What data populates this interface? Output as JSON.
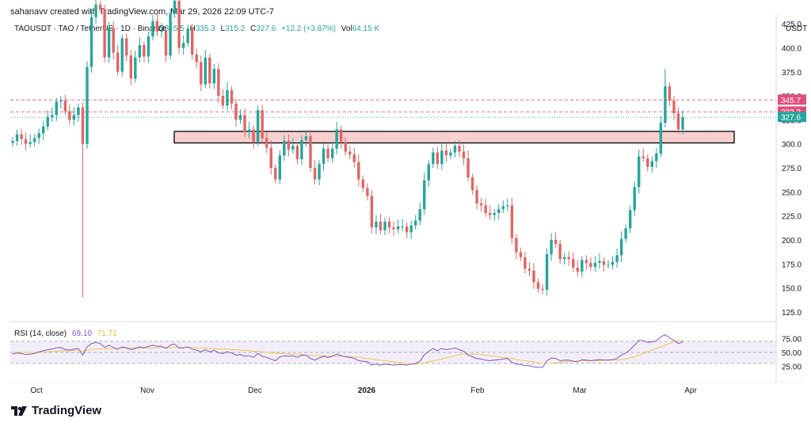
{
  "header": {
    "created_by": "sahanavv created with TradingView.com, Mar 29, 2026 22:09 UTC-7"
  },
  "legend": {
    "symbol": "TAOUSDT · TAO / TetherUS · 1D · Binance",
    "o_label": "O",
    "o": "315.5",
    "h_label": "H",
    "h": "335.3",
    "l_label": "L",
    "l": "315.2",
    "c_label": "C",
    "c": "327.6",
    "change": "+12.2 (+3.87%)",
    "vol_label": "Vol",
    "vol": "64.15 K"
  },
  "price_axis": {
    "currency": "USDT",
    "ticks": [
      "425.0",
      "400.0",
      "375.0",
      "350.0",
      "325.0",
      "300.0",
      "275.0",
      "250.0",
      "225.0",
      "200.0",
      "175.0",
      "150.0",
      "125.0"
    ],
    "tick_values": [
      425,
      400,
      375,
      350,
      325,
      300,
      275,
      250,
      225,
      200,
      175,
      150,
      125
    ],
    "labels": [
      {
        "text": "345.7",
        "value": 345.7,
        "color": "#e0507a"
      },
      {
        "text": "333.3",
        "value": 333.3,
        "color": "#e0507a"
      },
      {
        "text": "327.6",
        "value": 327.6,
        "color": "#26a69a"
      }
    ]
  },
  "rsi": {
    "title": "RSI (14, close)",
    "value": "69.10",
    "ma": "71.71",
    "ticks": [
      "75.00",
      "50.00",
      "25.00"
    ],
    "tick_values": [
      75,
      50,
      25
    ],
    "upper": 70,
    "lower": 30
  },
  "time_axis": {
    "labels": [
      "Oct",
      "Nov",
      "Dec",
      "2026",
      "Feb",
      "Mar",
      "Apr"
    ]
  },
  "footer": {
    "brand": "TradingView"
  },
  "colors": {
    "up": "#26a69a",
    "down": "#e06666",
    "rsi_line": "#7e57c2",
    "rsi_ma": "#f2c84b",
    "zone_fill": "#f8d0d0",
    "zone_stroke": "#000000",
    "dashed": "#e0507a"
  },
  "chart_data": {
    "type": "candlestick",
    "title": "TAOUSDT · TAO / TetherUS · 1D · Binance",
    "x_period": "daily, approx. late Sep 2025 – Mar 29 2026",
    "ylim": [
      115,
      435
    ],
    "horizontal_lines": [
      345.7,
      333.3,
      327.6
    ],
    "support_zone": [
      301,
      313
    ],
    "closes": [
      303,
      310,
      305,
      300,
      302,
      306,
      311,
      318,
      328,
      330,
      344,
      345,
      334,
      325,
      330,
      338,
      300,
      380,
      432,
      445,
      440,
      390,
      421,
      395,
      375,
      410,
      392,
      368,
      390,
      403,
      391,
      412,
      428,
      417,
      418,
      392,
      436,
      449,
      400,
      405,
      420,
      393,
      385,
      362,
      390,
      363,
      378,
      350,
      340,
      356,
      342,
      325,
      330,
      312,
      315,
      302,
      335,
      306,
      296,
      275,
      263,
      288,
      303,
      294,
      298,
      284,
      304,
      308,
      275,
      263,
      279,
      295,
      285,
      295,
      315,
      302,
      292,
      289,
      281,
      263,
      254,
      246,
      213,
      219,
      210,
      219,
      213,
      211,
      214,
      214,
      208,
      215,
      220,
      232,
      262,
      279,
      291,
      279,
      293,
      288,
      291,
      298,
      292,
      285,
      265,
      252,
      238,
      236,
      228,
      226,
      228,
      232,
      235,
      236,
      202,
      187,
      182,
      170,
      168,
      156,
      149,
      148,
      185,
      200,
      196,
      180,
      182,
      180,
      171,
      167,
      179,
      176,
      172,
      176,
      178,
      174,
      174,
      177,
      184,
      201,
      212,
      231,
      255,
      287,
      285,
      276,
      282,
      290,
      322,
      360,
      345,
      332,
      315,
      327.6
    ],
    "rsi": [
      47,
      49,
      48,
      46,
      47,
      48,
      51,
      53,
      55,
      56,
      58,
      59,
      55,
      54,
      56,
      57,
      45,
      60,
      66,
      68,
      66,
      59,
      63,
      59,
      56,
      60,
      58,
      55,
      57,
      60,
      58,
      61,
      63,
      61,
      61,
      57,
      63,
      65,
      58,
      58,
      60,
      56,
      54,
      51,
      55,
      51,
      54,
      49,
      48,
      51,
      49,
      45,
      46,
      43,
      44,
      41,
      48,
      43,
      41,
      38,
      35,
      42,
      44,
      43,
      44,
      41,
      45,
      45,
      39,
      36,
      40,
      43,
      41,
      43,
      47,
      44,
      42,
      41,
      39,
      35,
      34,
      33,
      27,
      29,
      27,
      29,
      28,
      27,
      28,
      28,
      27,
      29,
      30,
      34,
      46,
      52,
      57,
      53,
      57,
      55,
      56,
      58,
      55,
      52,
      45,
      42,
      39,
      38,
      36,
      35,
      36,
      37,
      38,
      39,
      32,
      29,
      28,
      26,
      26,
      24,
      23,
      23,
      35,
      40,
      39,
      35,
      36,
      36,
      34,
      33,
      37,
      36,
      35,
      36,
      37,
      36,
      36,
      37,
      39,
      45,
      49,
      55,
      63,
      72,
      71,
      68,
      69,
      71,
      78,
      82,
      76,
      72,
      66,
      69
    ],
    "rsi_ma": [
      50,
      50,
      50,
      50,
      50,
      50,
      50,
      51,
      51,
      52,
      52,
      53,
      53,
      53,
      54,
      54,
      53,
      54,
      55,
      56,
      56,
      56,
      57,
      57,
      57,
      58,
      58,
      58,
      58,
      58,
      58,
      58,
      58,
      58,
      59,
      59,
      59,
      59,
      59,
      59,
      59,
      59,
      58,
      58,
      58,
      57,
      57,
      56,
      56,
      56,
      55,
      55,
      54,
      54,
      53,
      52,
      52,
      51,
      50,
      49,
      49,
      48,
      48,
      47,
      47,
      46,
      46,
      45,
      45,
      44,
      44,
      44,
      43,
      43,
      43,
      43,
      43,
      42,
      42,
      41,
      40,
      39,
      38,
      37,
      36,
      35,
      34,
      33,
      32,
      31,
      30,
      30,
      29,
      30,
      31,
      33,
      35,
      36,
      38,
      40,
      42,
      44,
      46,
      47,
      47,
      47,
      47,
      46,
      45,
      44,
      43,
      42,
      41,
      40,
      39,
      37,
      36,
      35,
      34,
      33,
      31,
      30,
      30,
      30,
      31,
      32,
      33,
      34,
      34,
      35,
      35,
      35,
      35,
      35,
      35,
      36,
      36,
      36,
      36,
      37,
      38,
      40,
      42,
      45,
      48,
      51,
      54,
      57,
      60,
      63,
      66,
      69,
      71,
      71.71
    ]
  }
}
